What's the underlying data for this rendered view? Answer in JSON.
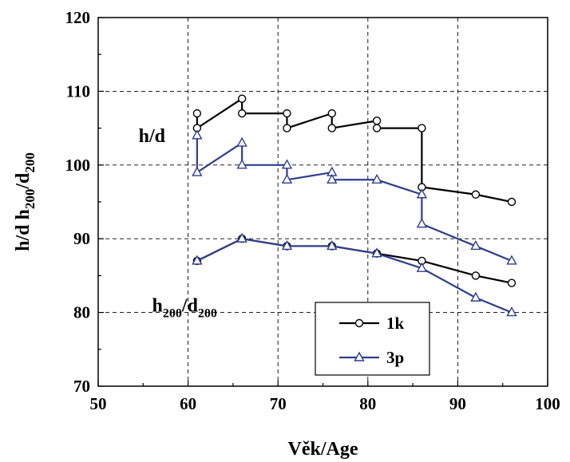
{
  "chart_data": {
    "type": "line",
    "xlabel": "Věk/Age",
    "ylabel": "h/d h200/d200",
    "xlim": [
      50,
      100
    ],
    "ylim": [
      70,
      120
    ],
    "xticks": [
      50,
      60,
      70,
      80,
      90,
      100
    ],
    "yticks": [
      70,
      80,
      90,
      100,
      110,
      120
    ],
    "grid": true,
    "legend_position": "bottom-right",
    "annotations": [
      {
        "text": "h/d",
        "x": 54.5,
        "y": 104
      },
      {
        "text": "h200/d200",
        "x": 56,
        "y": 81
      }
    ],
    "series": [
      {
        "name": "1k",
        "color": "#000000",
        "marker": "circle",
        "group": "h/d",
        "x": [
          61,
          61,
          66,
          66,
          71,
          71,
          76,
          76,
          81,
          81,
          86,
          86,
          92,
          96
        ],
        "y": [
          107,
          105,
          109,
          107,
          107,
          105,
          107,
          105,
          106,
          105,
          105,
          97,
          96,
          95
        ]
      },
      {
        "name": "3p",
        "color": "#2e3d8f",
        "marker": "triangle",
        "group": "h/d",
        "x": [
          61,
          61,
          66,
          66,
          71,
          71,
          76,
          76,
          81,
          86,
          86,
          92,
          96
        ],
        "y": [
          104,
          99,
          103,
          100,
          100,
          98,
          99,
          98,
          98,
          96,
          92,
          89,
          87
        ]
      },
      {
        "name": "1k",
        "color": "#000000",
        "marker": "circle",
        "group": "h200/d200",
        "x": [
          61,
          66,
          71,
          76,
          81,
          86,
          92,
          96
        ],
        "y": [
          87,
          90,
          89,
          89,
          88,
          87,
          85,
          84
        ]
      },
      {
        "name": "3p",
        "color": "#2e3d8f",
        "marker": "triangle",
        "group": "h200/d200",
        "x": [
          61,
          66,
          71,
          76,
          81,
          86,
          92,
          96
        ],
        "y": [
          87,
          90,
          89,
          89,
          88,
          86,
          82,
          80
        ]
      }
    ]
  }
}
